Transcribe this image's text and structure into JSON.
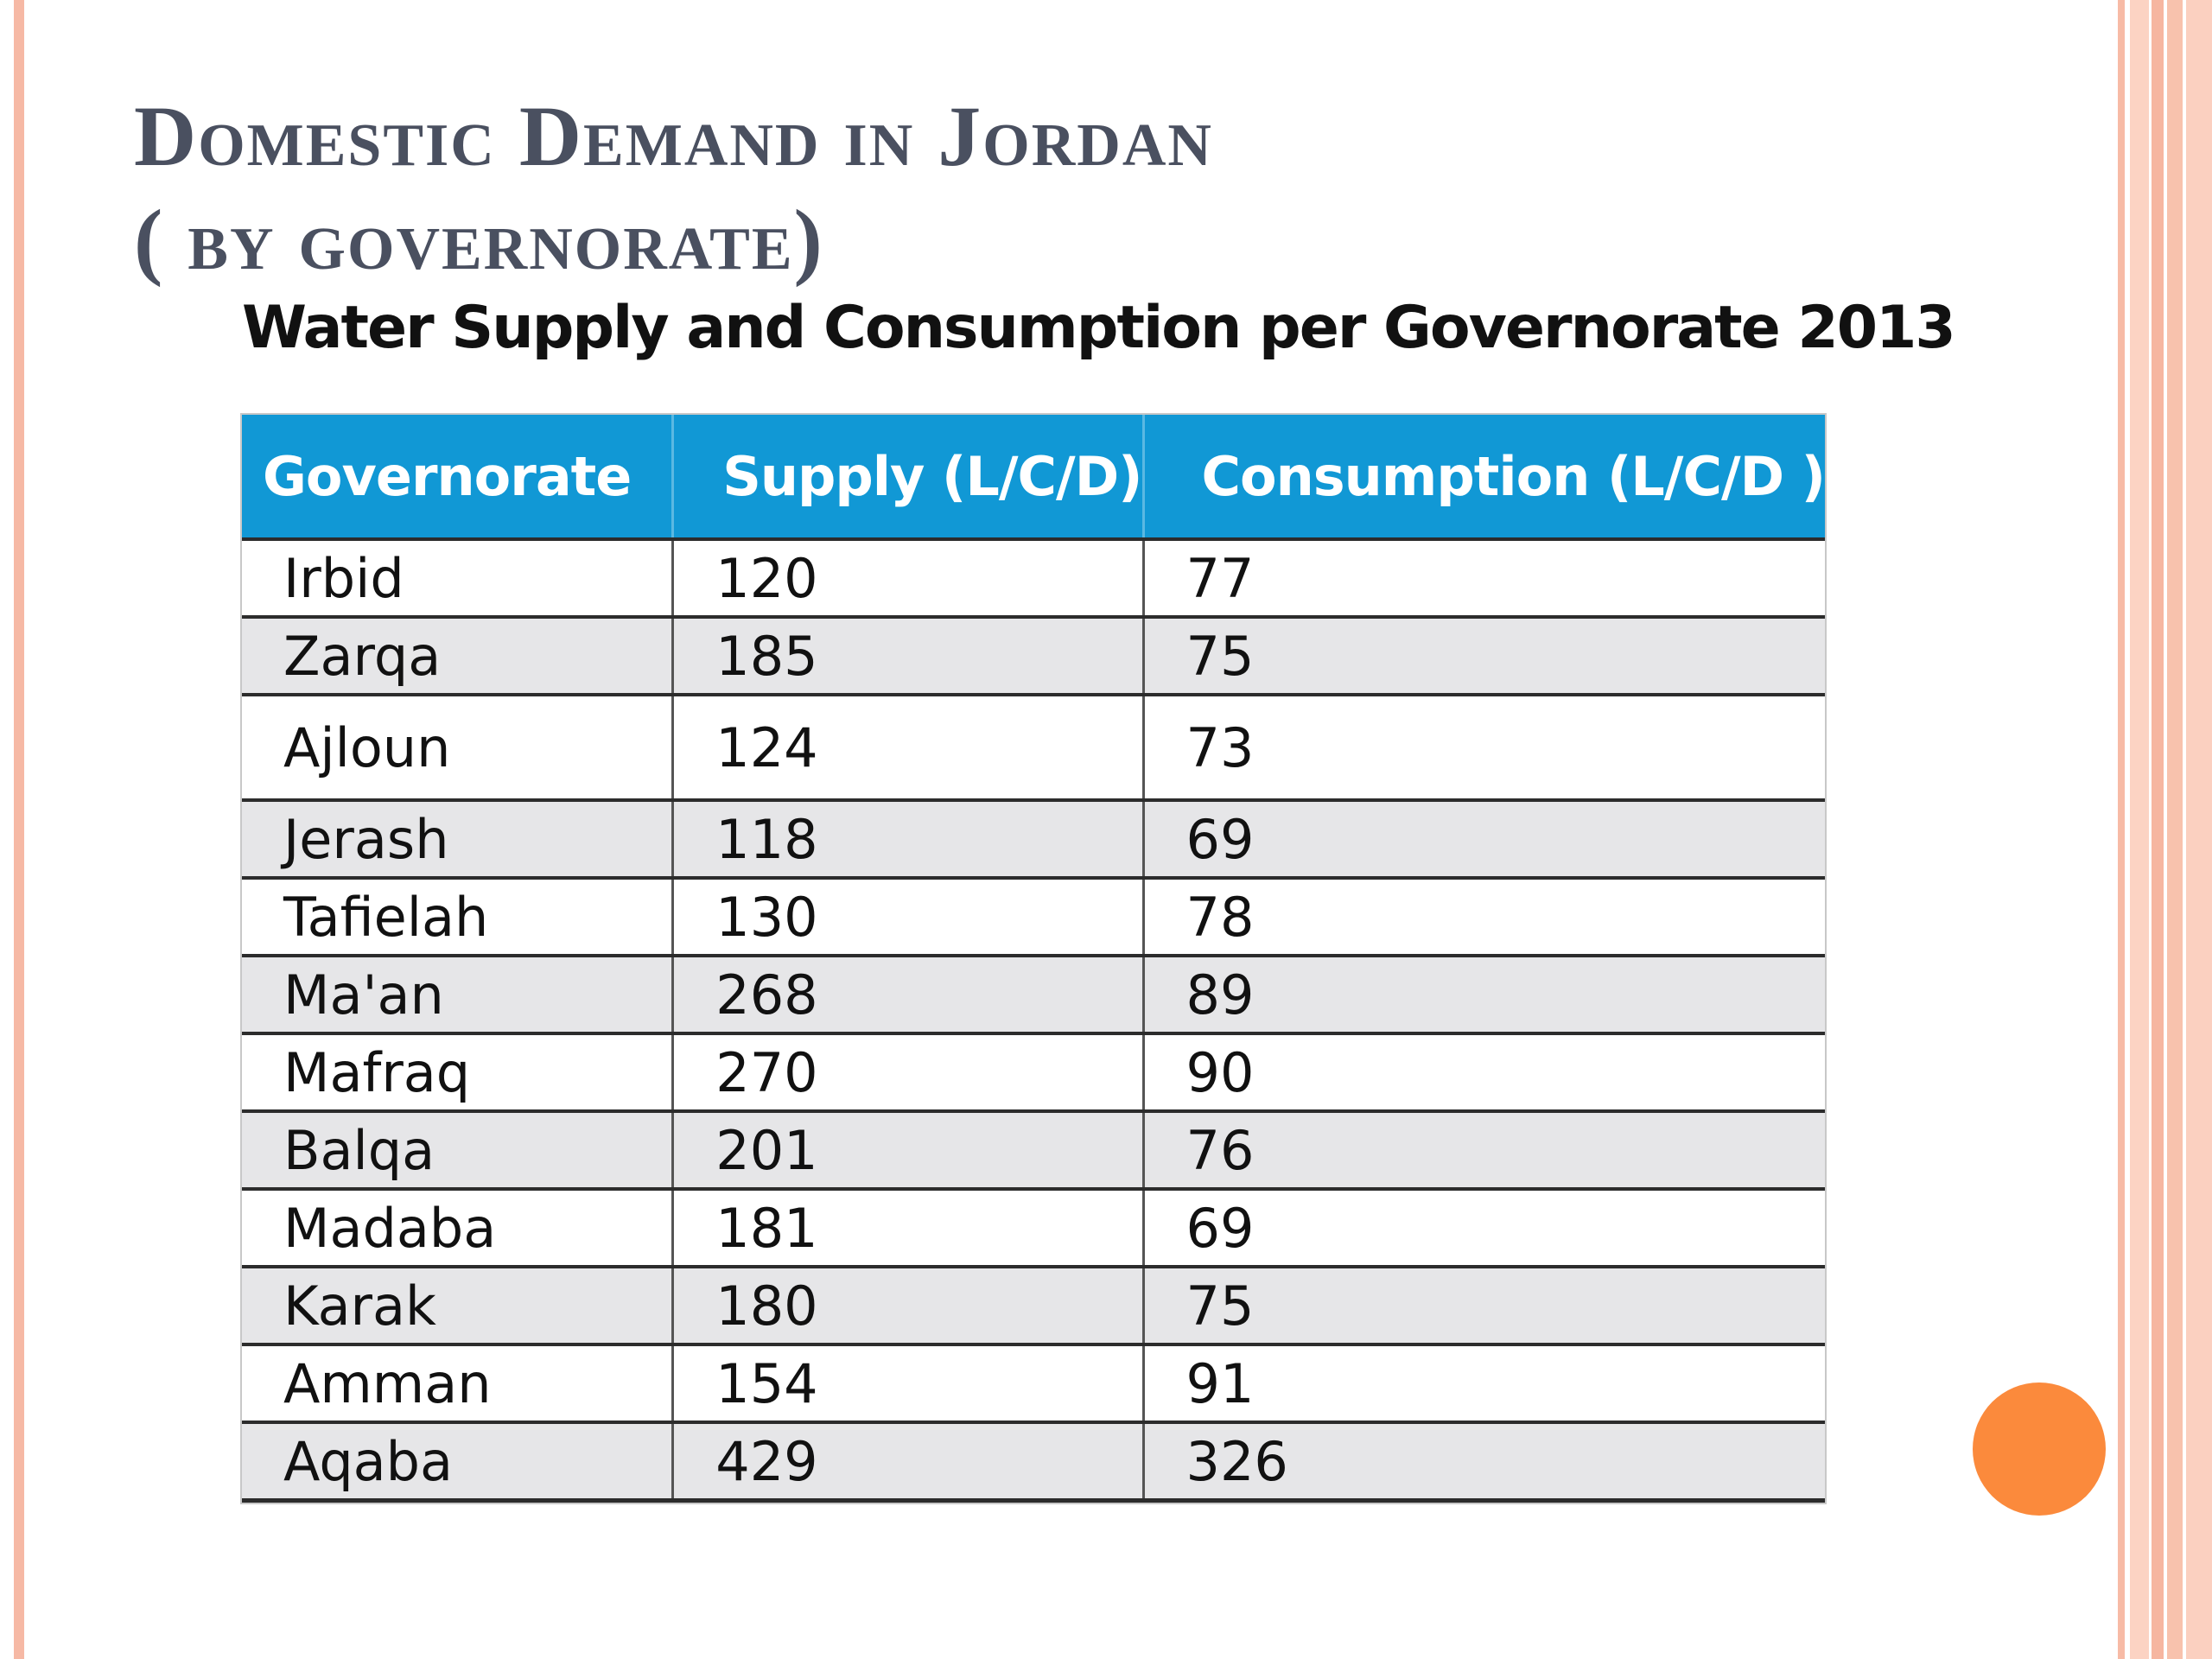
{
  "slide": {
    "title_line1": "Domestic Demand in Jordan",
    "title_line2": "( by governorate)",
    "table_caption": "Water Supply and  Consumption per Governorate 2013"
  },
  "table": {
    "headers": [
      "Governorate",
      "Supply (L/C/D)",
      "Consumption (L/C/D )"
    ],
    "rows": [
      [
        "Irbid",
        "120",
        "77"
      ],
      [
        "Zarqa",
        "185",
        "75"
      ],
      [
        "Ajloun",
        "124",
        "73"
      ],
      [
        "Jerash",
        "118",
        "69"
      ],
      [
        "Tafielah",
        "130",
        "78"
      ],
      [
        "Ma'an",
        "268",
        "89"
      ],
      [
        "Mafraq",
        "270",
        "90"
      ],
      [
        "Balqa",
        "201",
        "76"
      ],
      [
        "Madaba",
        "181",
        "69"
      ],
      [
        "Karak",
        "180",
        "75"
      ],
      [
        "Amman",
        "154",
        "91"
      ],
      [
        "Aqaba",
        "429",
        "326"
      ]
    ]
  },
  "colors": {
    "header_bg": "#1198d5",
    "title_text": "#4a5060",
    "accent_dot": "#fb8a3c",
    "border_stripes": "#f6b9a5"
  }
}
